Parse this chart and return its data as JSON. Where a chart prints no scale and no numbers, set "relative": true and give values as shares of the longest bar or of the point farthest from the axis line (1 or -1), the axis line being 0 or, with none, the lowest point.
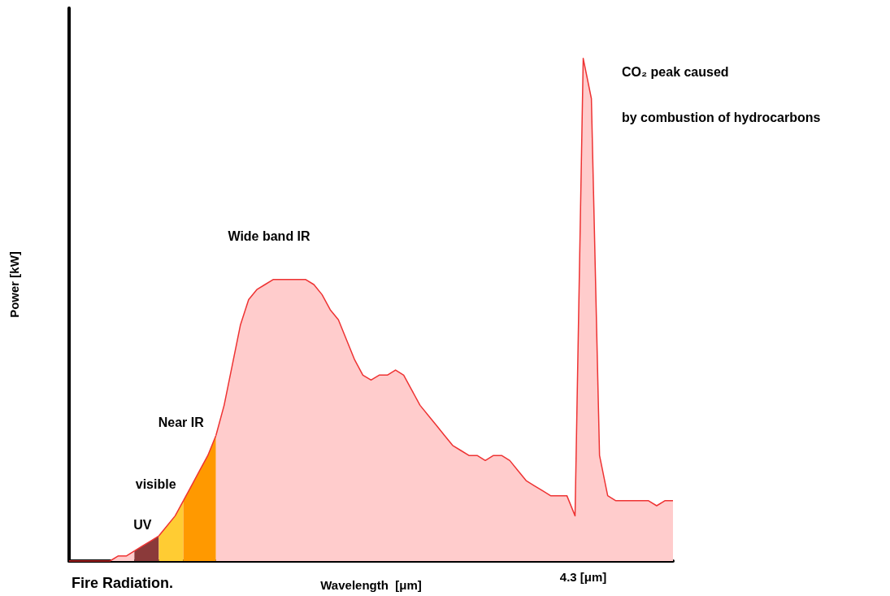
{
  "chart_data": {
    "type": "area",
    "relative": true,
    "xlabel": "Wavelength  [μm]",
    "ylabel": "Power [kW]",
    "grid": false,
    "legend": false,
    "categories": [
      null,
      null,
      null,
      null,
      null,
      null,
      null,
      null,
      null,
      null,
      null,
      null,
      null,
      null,
      null,
      null,
      null,
      null,
      null,
      null,
      null,
      null,
      null,
      null,
      null,
      null,
      null,
      null,
      null,
      null,
      null,
      null,
      null,
      null,
      null,
      null,
      null,
      null,
      null,
      null,
      null,
      null,
      null,
      null,
      null,
      null,
      null,
      null,
      null,
      null,
      null,
      null,
      null,
      null,
      null,
      null,
      null,
      null,
      null,
      null,
      null,
      null,
      null,
      null,
      null,
      null,
      null,
      null,
      null,
      null,
      null,
      null,
      null,
      null,
      null
    ],
    "series": [
      {
        "color": "#ffcccc",
        "values": [
          0,
          0,
          0,
          0,
          0,
          0,
          0.01,
          0.01,
          0.02,
          null,
          null,
          null,
          null,
          null,
          null,
          null,
          null,
          null,
          null,
          null,
          null,
          null,
          null,
          null,
          null,
          null,
          null,
          null,
          null,
          null,
          null,
          null,
          null,
          null,
          null,
          null,
          null,
          null,
          null,
          null,
          null,
          null,
          null,
          null,
          null,
          null,
          null,
          null,
          null,
          null,
          null,
          null,
          null,
          null,
          null,
          null,
          null,
          null,
          null,
          null,
          null,
          null,
          null,
          null,
          null,
          null,
          null,
          null,
          null,
          null,
          null,
          null,
          null,
          null,
          null
        ]
      },
      {
        "name": "UV",
        "color": "#8b3a3a",
        "values": [
          null,
          null,
          null,
          null,
          null,
          null,
          null,
          null,
          0.02,
          0.03,
          0.04,
          0.05,
          null,
          null,
          null,
          null,
          null,
          null,
          null,
          null,
          null,
          null,
          null,
          null,
          null,
          null,
          null,
          null,
          null,
          null,
          null,
          null,
          null,
          null,
          null,
          null,
          null,
          null,
          null,
          null,
          null,
          null,
          null,
          null,
          null,
          null,
          null,
          null,
          null,
          null,
          null,
          null,
          null,
          null,
          null,
          null,
          null,
          null,
          null,
          null,
          null,
          null,
          null,
          null,
          null,
          null,
          null,
          null,
          null,
          null,
          null,
          null,
          null,
          null,
          null
        ]
      },
      {
        "name": "visible",
        "color": "#ffcc33",
        "values": [
          null,
          null,
          null,
          null,
          null,
          null,
          null,
          null,
          null,
          null,
          null,
          0.05,
          0.07,
          0.09,
          0.12,
          null,
          null,
          null,
          null,
          null,
          null,
          null,
          null,
          null,
          null,
          null,
          null,
          null,
          null,
          null,
          null,
          null,
          null,
          null,
          null,
          null,
          null,
          null,
          null,
          null,
          null,
          null,
          null,
          null,
          null,
          null,
          null,
          null,
          null,
          null,
          null,
          null,
          null,
          null,
          null,
          null,
          null,
          null,
          null,
          null,
          null,
          null,
          null,
          null,
          null,
          null,
          null,
          null,
          null,
          null,
          null,
          null,
          null,
          null,
          null
        ]
      },
      {
        "name": "Near IR",
        "color": "#ff9900",
        "values": [
          null,
          null,
          null,
          null,
          null,
          null,
          null,
          null,
          null,
          null,
          null,
          null,
          null,
          null,
          0.12,
          0.15,
          0.18,
          0.21,
          0.25,
          null,
          null,
          null,
          null,
          null,
          null,
          null,
          null,
          null,
          null,
          null,
          null,
          null,
          null,
          null,
          null,
          null,
          null,
          null,
          null,
          null,
          null,
          null,
          null,
          null,
          null,
          null,
          null,
          null,
          null,
          null,
          null,
          null,
          null,
          null,
          null,
          null,
          null,
          null,
          null,
          null,
          null,
          null,
          null,
          null,
          null,
          null,
          null,
          null,
          null,
          null,
          null,
          null,
          null,
          null,
          null
        ]
      },
      {
        "name": "Wide band IR",
        "color": "#ffcccc",
        "values": [
          null,
          null,
          null,
          null,
          null,
          null,
          null,
          null,
          null,
          null,
          null,
          null,
          null,
          null,
          null,
          null,
          null,
          null,
          0.25,
          0.31,
          0.39,
          0.47,
          0.52,
          0.54,
          0.55,
          0.56,
          0.56,
          0.56,
          0.56,
          0.56,
          0.55,
          0.53,
          0.5,
          0.48,
          0.44,
          0.4,
          0.37,
          0.36,
          0.37,
          0.37,
          0.38,
          0.37,
          0.34,
          0.31,
          0.29,
          0.27,
          0.25,
          0.23,
          0.22,
          0.21,
          0.21,
          0.2,
          0.21,
          0.21,
          0.2,
          0.18,
          0.16,
          0.15,
          0.14,
          0.13,
          0.13,
          0.13,
          0.09,
          1,
          0.92,
          0.21,
          0.13,
          0.12,
          0.12,
          0.12,
          0.12,
          0.12,
          0.11,
          0.12,
          0.12
        ]
      }
    ],
    "annotations": [
      "CO₂ peak caused",
      "by combustion of hydrocarbons",
      "Fire Radiation.",
      "4.3 [μm]"
    ]
  }
}
